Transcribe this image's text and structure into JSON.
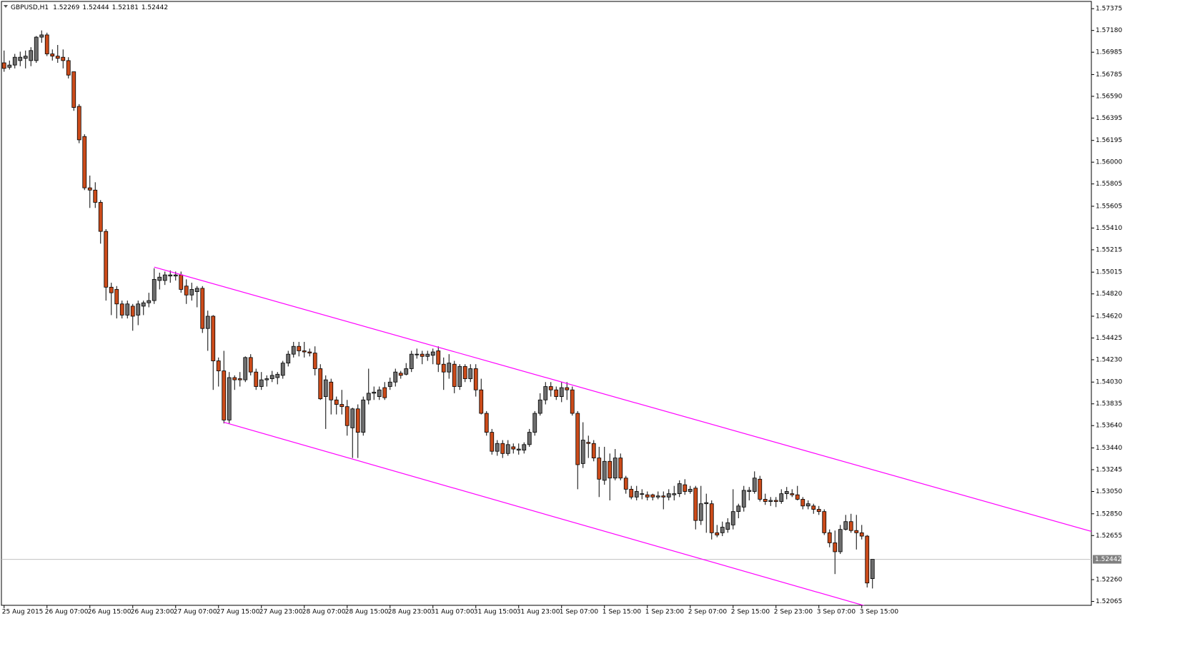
{
  "chart_data": {
    "type": "candlestick",
    "symbol": "GBPUSD,H1",
    "up_color": "#6e6e6e",
    "down_color": "#cc4b1a",
    "outline_color": "#000000",
    "grid": false,
    "current_price_line": true,
    "current_price_color": "#c0c0c0",
    "ylim": [
      1.5203,
      1.5744
    ],
    "yticks": [
      1.57375,
      {
        "value": 1.5718,
        "label": "1.57180"
      },
      1.56985,
      1.56785,
      {
        "value": 1.5659,
        "label": "1.56590"
      },
      1.56395,
      1.56195,
      {
        "value": 1.56,
        "label": "1.56000"
      },
      1.55805,
      1.55605,
      {
        "value": 1.5541,
        "label": "1.55410"
      },
      1.55215,
      1.55015,
      {
        "value": 1.5482,
        "label": "1.54820"
      },
      {
        "value": 1.5462,
        "label": "1.54620"
      },
      1.54425,
      {
        "value": 1.5423,
        "label": "1.54230"
      },
      {
        "value": 1.5403,
        "label": "1.54030"
      },
      1.53835,
      {
        "value": 1.5364,
        "label": "1.53640"
      },
      {
        "value": 1.5344,
        "label": "1.53440"
      },
      1.53245,
      {
        "value": 1.5305,
        "label": "1.53050"
      },
      {
        "value": 1.5285,
        "label": "1.52850"
      },
      1.52655,
      {
        "value": 1.5226,
        "label": "1.52260"
      },
      1.52065
    ],
    "categories": [
      "25 Aug 2015",
      null,
      null,
      null,
      null,
      null,
      null,
      null,
      "26 Aug 07:00",
      null,
      null,
      null,
      null,
      null,
      null,
      null,
      "26 Aug 15:00",
      null,
      null,
      null,
      null,
      null,
      null,
      null,
      "26 Aug 23:00",
      null,
      null,
      null,
      null,
      null,
      null,
      null,
      "27 Aug 07:00",
      null,
      null,
      null,
      null,
      null,
      null,
      null,
      "27 Aug 15:00",
      null,
      null,
      null,
      null,
      null,
      null,
      null,
      "27 Aug 23:00",
      null,
      null,
      null,
      null,
      null,
      null,
      null,
      "28 Aug 07:00",
      null,
      null,
      null,
      null,
      null,
      null,
      null,
      "28 Aug 15:00",
      null,
      null,
      null,
      null,
      null,
      null,
      null,
      "28 Aug 23:00",
      null,
      null,
      null,
      null,
      null,
      null,
      null,
      "31 Aug 07:00",
      null,
      null,
      null,
      null,
      null,
      null,
      null,
      "31 Aug 15:00",
      null,
      null,
      null,
      null,
      null,
      null,
      null,
      "31 Aug 23:00",
      null,
      null,
      null,
      null,
      null,
      null,
      null,
      "1 Sep 07:00",
      null,
      null,
      null,
      null,
      null,
      null,
      null,
      "1 Sep 15:00",
      null,
      null,
      null,
      null,
      null,
      null,
      null,
      "1 Sep 23:00",
      null,
      null,
      null,
      null,
      null,
      null,
      null,
      "2 Sep 07:00",
      null,
      null,
      null,
      null,
      null,
      null,
      null,
      "2 Sep 15:00",
      null,
      null,
      null,
      null,
      null,
      null,
      null,
      "2 Sep 23:00",
      null,
      null,
      null,
      null,
      null,
      null,
      null,
      "3 Sep 07:00",
      null,
      null,
      null,
      null,
      null,
      null,
      null,
      "3 Sep 15:00",
      null,
      null
    ],
    "open": [
      1.5689,
      1.5685,
      1.5687,
      1.5691,
      1.5693,
      1.5691,
      1.5691,
      1.5712,
      1.5714,
      1.5697,
      1.5695,
      1.5694,
      1.5691,
      1.5681,
      1.565,
      1.5623,
      1.5577,
      1.5575,
      1.5564,
      1.5538,
      1.5488,
      1.5486,
      1.5473,
      1.5463,
      1.5471,
      1.5463,
      1.5471,
      1.5474,
      1.5476,
      1.5494,
      1.5494,
      1.5498,
      1.5498,
      1.5499,
      1.5489,
      1.5481,
      1.5484,
      1.5487,
      1.5451,
      1.5462,
      1.5422,
      1.5413,
      1.5369,
      1.5407,
      1.5406,
      1.5405,
      1.5425,
      1.5412,
      1.5399,
      1.5405,
      1.5406,
      1.5407,
      1.5409,
      1.542,
      1.5428,
      1.5435,
      1.5431,
      1.543,
      1.5429,
      1.5415,
      1.539,
      1.5403,
      1.5387,
      1.5383,
      1.5381,
      1.5362,
      1.5379,
      1.5358,
      1.5387,
      1.5393,
      1.539,
      1.5398,
      1.5399,
      1.5403,
      1.5411,
      1.541,
      1.5415,
      1.5428,
      1.5428,
      1.5426,
      1.5427,
      1.5431,
      1.5419,
      1.5412,
      1.5419,
      1.5399,
      1.5417,
      1.5406,
      1.5415,
      1.5396,
      1.5375,
      1.5358,
      1.5341,
      1.5348,
      1.5339,
      1.5345,
      1.5342,
      1.5342,
      1.5347,
      1.5358,
      1.5375,
      1.5387,
      1.5399,
      1.5396,
      1.539,
      1.5398,
      1.5396,
      1.5375,
      1.533,
      1.5349,
      1.5348,
      1.5335,
      1.5315,
      1.5332,
      1.5317,
      1.5335,
      1.5317,
      1.5307,
      1.53,
      1.5303,
      1.5302,
      1.5302,
      1.53,
      1.5301,
      1.53,
      1.5302,
      1.5303,
      1.5311,
      1.5305,
      1.5308,
      1.5279,
      1.5294,
      1.5294,
      1.5268,
      1.5268,
      1.5271,
      1.5275,
      1.5287,
      1.5291,
      1.5305,
      1.5305,
      1.5316,
      1.5298,
      1.5296,
      1.5297,
      1.5296,
      1.5303,
      1.5303,
      1.5302,
      1.5298,
      1.5292,
      1.5292,
      1.5289,
      1.5287,
      1.5268,
      1.5259,
      1.5251,
      1.5271,
      1.5278,
      1.527,
      1.5268,
      1.5265,
      1.52269
    ],
    "high": [
      1.57,
      1.5691,
      1.5697,
      1.5699,
      1.57,
      1.5703,
      1.5713,
      1.5718,
      1.5716,
      1.5701,
      1.5705,
      1.5701,
      1.5694,
      1.5681,
      1.5652,
      1.5625,
      1.5588,
      1.5582,
      1.5566,
      1.554,
      1.5492,
      1.5489,
      1.5476,
      1.5476,
      1.5473,
      1.5476,
      1.5476,
      1.5483,
      1.5505,
      1.5501,
      1.5502,
      1.5503,
      1.5502,
      1.5502,
      1.5495,
      1.5492,
      1.5489,
      1.5489,
      1.5467,
      1.5463,
      1.5425,
      1.5431,
      1.5412,
      1.5409,
      1.5412,
      1.5426,
      1.5428,
      1.5415,
      1.5412,
      1.5409,
      1.5413,
      1.5412,
      1.5422,
      1.5431,
      1.5439,
      1.5439,
      1.5439,
      1.5433,
      1.5435,
      1.5419,
      1.5409,
      1.5406,
      1.539,
      1.5396,
      1.5387,
      1.538,
      1.5383,
      1.539,
      1.5415,
      1.5399,
      1.5399,
      1.5403,
      1.5407,
      1.5415,
      1.5413,
      1.542,
      1.5431,
      1.5433,
      1.5431,
      1.5431,
      1.5433,
      1.5435,
      1.5425,
      1.5428,
      1.5422,
      1.5419,
      1.5419,
      1.5419,
      1.5419,
      1.5406,
      1.5377,
      1.5361,
      1.5351,
      1.5351,
      1.5351,
      1.5348,
      1.5348,
      1.5349,
      1.5361,
      1.5377,
      1.5393,
      1.5403,
      1.5403,
      1.5399,
      1.5403,
      1.5403,
      1.5399,
      1.5377,
      1.5367,
      1.5355,
      1.5351,
      1.5345,
      1.5345,
      1.5339,
      1.5343,
      1.5339,
      1.5319,
      1.531,
      1.531,
      1.5307,
      1.5305,
      1.5303,
      1.5305,
      1.5305,
      1.5307,
      1.531,
      1.5315,
      1.5316,
      1.531,
      1.531,
      1.531,
      1.5303,
      1.5297,
      1.5275,
      1.5278,
      1.5281,
      1.5307,
      1.5294,
      1.531,
      1.5309,
      1.5323,
      1.5319,
      1.5303,
      1.53,
      1.53,
      1.5307,
      1.5309,
      1.5307,
      1.531,
      1.53,
      1.5297,
      1.5294,
      1.5292,
      1.5289,
      1.5271,
      1.527,
      1.5275,
      1.5284,
      1.5285,
      1.5284,
      1.5275,
      1.5266,
      1.52444
    ],
    "low": [
      1.5681,
      1.5683,
      1.5684,
      1.5686,
      1.5684,
      1.5686,
      1.5689,
      1.5707,
      1.5695,
      1.5691,
      1.5689,
      1.5684,
      1.5675,
      1.5646,
      1.5617,
      1.5575,
      1.5559,
      1.5559,
      1.5527,
      1.5476,
      1.5463,
      1.546,
      1.546,
      1.546,
      1.5449,
      1.5454,
      1.5463,
      1.547,
      1.5473,
      1.5486,
      1.549,
      1.5492,
      1.5494,
      1.5483,
      1.5473,
      1.5476,
      1.547,
      1.5447,
      1.5431,
      1.5396,
      1.5399,
      1.5366,
      1.5366,
      1.5396,
      1.5399,
      1.5403,
      1.5409,
      1.5396,
      1.5396,
      1.5399,
      1.5403,
      1.5401,
      1.5406,
      1.5417,
      1.5425,
      1.5426,
      1.5425,
      1.5426,
      1.5409,
      1.5387,
      1.5361,
      1.5374,
      1.5374,
      1.5374,
      1.5355,
      1.5335,
      1.5335,
      1.5355,
      1.5383,
      1.5387,
      1.5387,
      1.5387,
      1.5396,
      1.5399,
      1.5406,
      1.5409,
      1.5412,
      1.5424,
      1.5419,
      1.5422,
      1.5419,
      1.5412,
      1.5396,
      1.5406,
      1.5393,
      1.5396,
      1.5403,
      1.5403,
      1.539,
      1.5374,
      1.5355,
      1.5338,
      1.5337,
      1.5335,
      1.5337,
      1.5339,
      1.5338,
      1.5339,
      1.5345,
      1.5355,
      1.5373,
      1.5383,
      1.539,
      1.5387,
      1.5385,
      1.5387,
      1.5373,
      1.5307,
      1.5326,
      1.5335,
      1.5332,
      1.53,
      1.5311,
      1.5297,
      1.5315,
      1.5315,
      1.5303,
      1.5298,
      1.5297,
      1.5298,
      1.5297,
      1.5297,
      1.5298,
      1.5289,
      1.5297,
      1.5297,
      1.53,
      1.5302,
      1.5303,
      1.5271,
      1.5275,
      1.5268,
      1.5262,
      1.5264,
      1.5265,
      1.5268,
      1.5271,
      1.5281,
      1.5287,
      1.5297,
      1.5303,
      1.5296,
      1.5293,
      1.5292,
      1.5291,
      1.5294,
      1.5298,
      1.53,
      1.5297,
      1.5289,
      1.5289,
      1.5285,
      1.5284,
      1.5266,
      1.5255,
      1.5231,
      1.5249,
      1.527,
      1.5268,
      1.5253,
      1.5262,
      1.5219,
      1.52181
    ],
    "close": [
      1.5684,
      1.5687,
      1.5694,
      1.5694,
      1.5695,
      1.57,
      1.5712,
      1.5714,
      1.5697,
      1.5695,
      1.5693,
      1.5691,
      1.5678,
      1.5649,
      1.562,
      1.5577,
      1.5575,
      1.5564,
      1.5538,
      1.5488,
      1.5483,
      1.5473,
      1.5463,
      1.5473,
      1.5462,
      1.5473,
      1.5474,
      1.5476,
      1.5495,
      1.5497,
      1.5499,
      1.5499,
      1.5499,
      1.5486,
      1.5481,
      1.5486,
      1.5487,
      1.5451,
      1.5462,
      1.5422,
      1.5413,
      1.5369,
      1.5407,
      1.5405,
      1.5405,
      1.5425,
      1.5412,
      1.5399,
      1.5405,
      1.5406,
      1.5409,
      1.541,
      1.542,
      1.5428,
      1.5435,
      1.5431,
      1.543,
      1.5429,
      1.5415,
      1.5388,
      1.5405,
      1.5387,
      1.5383,
      1.5381,
      1.5364,
      1.5379,
      1.5358,
      1.5387,
      1.5393,
      1.5394,
      1.5396,
      1.5389,
      1.5403,
      1.5412,
      1.5409,
      1.5415,
      1.5428,
      1.5428,
      1.5426,
      1.5428,
      1.543,
      1.5419,
      1.5412,
      1.542,
      1.5399,
      1.5417,
      1.5406,
      1.5415,
      1.5396,
      1.5375,
      1.5358,
      1.5341,
      1.5348,
      1.5339,
      1.5347,
      1.5343,
      1.5343,
      1.5347,
      1.5358,
      1.5375,
      1.5387,
      1.5399,
      1.5396,
      1.539,
      1.5398,
      1.5396,
      1.5375,
      1.5329,
      1.5351,
      1.5348,
      1.5335,
      1.5316,
      1.5332,
      1.5317,
      1.5335,
      1.5317,
      1.5307,
      1.53,
      1.5305,
      1.5303,
      1.53,
      1.53,
      1.5301,
      1.53,
      1.5303,
      1.5303,
      1.5312,
      1.5305,
      1.5307,
      1.5279,
      1.5294,
      1.5295,
      1.5268,
      1.5266,
      1.5273,
      1.5277,
      1.5287,
      1.5292,
      1.5306,
      1.5306,
      1.5317,
      1.5298,
      1.5296,
      1.5297,
      1.5296,
      1.5303,
      1.5305,
      1.5302,
      1.5298,
      1.5292,
      1.5294,
      1.5289,
      1.5287,
      1.5268,
      1.5259,
      1.5251,
      1.5271,
      1.5278,
      1.527,
      1.5268,
      1.5265,
      1.5223,
      1.52442
    ],
    "trendlines": [
      {
        "color": "#ff00ff",
        "start": {
          "bar": 28,
          "price": 1.5506
        },
        "end": {
          "bar": 203,
          "price": 1.5269
        }
      },
      {
        "color": "#ff00ff",
        "start": {
          "bar": 41,
          "price": 1.5367
        },
        "end": {
          "bar": 161,
          "price": 1.5202
        }
      }
    ]
  }
}
